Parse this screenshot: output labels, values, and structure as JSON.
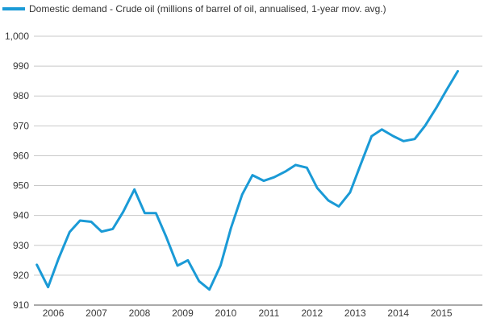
{
  "chart_data": {
    "type": "line",
    "title": "",
    "xlabel": "",
    "ylabel": "",
    "ylim": [
      910,
      1000
    ],
    "yticks": [
      910,
      920,
      930,
      940,
      950,
      960,
      970,
      980,
      990,
      1000
    ],
    "ytick_labels": [
      "910",
      "920",
      "930",
      "940",
      "950",
      "960",
      "970",
      "980",
      "990",
      "1,000"
    ],
    "xlim": [
      2005.55,
      2015.95
    ],
    "xticks": [
      2006,
      2007,
      2008,
      2009,
      2010,
      2011,
      2012,
      2013,
      2014,
      2015
    ],
    "xtick_labels": [
      "2006",
      "2007",
      "2008",
      "2009",
      "2010",
      "2011",
      "2012",
      "2013",
      "2014",
      "2015"
    ],
    "grid": true,
    "legend": "top-left",
    "series": [
      {
        "name": "Domestic demand - Crude oil (millions of barrel of oil, annualised, 1-year mov. avg.)",
        "color": "#1a9ad6",
        "x": [
          2005.62,
          2005.88,
          2006.12,
          2006.38,
          2006.62,
          2006.88,
          2007.12,
          2007.38,
          2007.62,
          2007.88,
          2008.12,
          2008.38,
          2008.62,
          2008.88,
          2009.12,
          2009.38,
          2009.62,
          2009.88,
          2010.12,
          2010.38,
          2010.62,
          2010.88,
          2011.12,
          2011.38,
          2011.62,
          2011.88,
          2012.12,
          2012.38,
          2012.62,
          2012.88,
          2013.12,
          2013.38,
          2013.62,
          2013.88,
          2014.12,
          2014.38,
          2014.62,
          2014.88,
          2015.12,
          2015.38
        ],
        "values": [
          923.5,
          916,
          925.5,
          934.5,
          938.3,
          937.9,
          934.6,
          935.5,
          941.2,
          948.7,
          940.8,
          940.8,
          932.8,
          923.2,
          925,
          918,
          915.2,
          923.3,
          935.8,
          947,
          953.5,
          951.6,
          952.8,
          954.7,
          956.9,
          956,
          949.2,
          945,
          943,
          947.7,
          956.8,
          966.5,
          968.8,
          966.6,
          964.9,
          965.6,
          970,
          976,
          982,
          988.3
        ]
      }
    ]
  }
}
